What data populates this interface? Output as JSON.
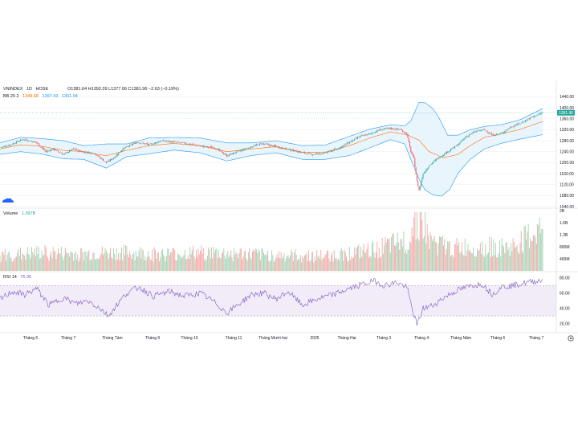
{
  "header": {
    "symbol": "VNINDEX",
    "interval": "1D",
    "exchange": "HOSE",
    "ohlc": "O1381.64 H1392.39 L1377.06 C1381.96 −2.63 (−0.19%)",
    "bb_label": "BB 20 2",
    "bb_basis": "1349.68",
    "bb_upper": "1397.43",
    "bb_lower": "1301.94"
  },
  "volume": {
    "label": "Volume",
    "value": "1.397B"
  },
  "rsi": {
    "label": "RSI 14",
    "value": "76.95"
  },
  "colors": {
    "up": "#26a69a",
    "down": "#ef5350",
    "bb_band": "#2196f3",
    "bb_fill": "#e3f2fd",
    "basis": "#ff6d00",
    "rsi_line": "#7e57c2",
    "rsi_fill": "#ede7f6",
    "grid": "#e6e9ef",
    "vol_up": "#a5d6b7",
    "vol_down": "#f7a9a8",
    "last_price_bg": "#26a69a"
  },
  "icons": {
    "logo": "tradingview-cloud-logo-icon",
    "settings": "settings-gear-icon"
  },
  "chart_data": {
    "type": "candlestick",
    "price_axis": {
      "ticks": [
        "1440.00",
        "1400.00",
        "1360.00",
        "1320.00",
        "1280.00",
        "1240.00",
        "1200.00",
        "1160.00",
        "1120.00",
        "1080.00",
        "1040.00"
      ],
      "last_price": "1381.96",
      "range": [
        1040,
        1450
      ]
    },
    "volume_axis": {
      "ticks": [
        "2B",
        "1.6B",
        "1.2B",
        "800M",
        "400M"
      ],
      "range": [
        0,
        2
      ]
    },
    "rsi_axis": {
      "ticks": [
        "80.00",
        "60.00",
        "40.00",
        "20.00"
      ],
      "range": [
        10,
        85
      ],
      "bands": [
        70,
        30
      ]
    },
    "x_labels": [
      "Tháng 6",
      "Tháng 7",
      "Tháng Tám",
      "Tháng 9",
      "Tháng 10",
      "Tháng 11",
      "Tháng Mười hai",
      "2025",
      "Tháng Hai",
      "Tháng 3",
      "Tháng 4",
      "Tháng Năm",
      "Tháng 6",
      "Tháng 7"
    ],
    "close_anchors": [
      [
        0,
        1255
      ],
      [
        10,
        1265
      ],
      [
        22,
        1285
      ],
      [
        35,
        1275
      ],
      [
        45,
        1240
      ],
      [
        52,
        1250
      ],
      [
        62,
        1230
      ],
      [
        72,
        1250
      ],
      [
        80,
        1240
      ],
      [
        92,
        1235
      ],
      [
        104,
        1200
      ],
      [
        112,
        1220
      ],
      [
        120,
        1250
      ],
      [
        134,
        1275
      ],
      [
        146,
        1265
      ],
      [
        158,
        1280
      ],
      [
        170,
        1275
      ],
      [
        182,
        1270
      ],
      [
        196,
        1260
      ],
      [
        210,
        1255
      ],
      [
        222,
        1225
      ],
      [
        232,
        1240
      ],
      [
        244,
        1255
      ],
      [
        256,
        1270
      ],
      [
        268,
        1260
      ],
      [
        280,
        1250
      ],
      [
        292,
        1240
      ],
      [
        304,
        1230
      ],
      [
        318,
        1235
      ],
      [
        330,
        1250
      ],
      [
        342,
        1275
      ],
      [
        352,
        1295
      ],
      [
        362,
        1305
      ],
      [
        372,
        1320
      ],
      [
        382,
        1325
      ],
      [
        392,
        1320
      ],
      [
        398,
        1305
      ],
      [
        402,
        1240
      ],
      [
        405,
        1215
      ],
      [
        408,
        1130
      ],
      [
        410,
        1100
      ],
      [
        414,
        1160
      ],
      [
        420,
        1190
      ],
      [
        428,
        1215
      ],
      [
        438,
        1240
      ],
      [
        448,
        1265
      ],
      [
        456,
        1295
      ],
      [
        466,
        1315
      ],
      [
        474,
        1320
      ],
      [
        482,
        1300
      ],
      [
        490,
        1305
      ],
      [
        500,
        1330
      ],
      [
        510,
        1345
      ],
      [
        520,
        1365
      ],
      [
        531,
        1382
      ]
    ],
    "basis_anchors": [
      [
        0,
        1250
      ],
      [
        20,
        1265
      ],
      [
        40,
        1260
      ],
      [
        62,
        1245
      ],
      [
        82,
        1240
      ],
      [
        104,
        1225
      ],
      [
        124,
        1245
      ],
      [
        146,
        1262
      ],
      [
        170,
        1270
      ],
      [
        196,
        1262
      ],
      [
        222,
        1240
      ],
      [
        246,
        1250
      ],
      [
        270,
        1258
      ],
      [
        296,
        1238
      ],
      [
        318,
        1238
      ],
      [
        342,
        1262
      ],
      [
        362,
        1290
      ],
      [
        382,
        1312
      ],
      [
        398,
        1302
      ],
      [
        410,
        1282
      ],
      [
        420,
        1240
      ],
      [
        434,
        1218
      ],
      [
        448,
        1230
      ],
      [
        460,
        1262
      ],
      [
        474,
        1292
      ],
      [
        490,
        1305
      ],
      [
        508,
        1320
      ],
      [
        531,
        1350
      ]
    ],
    "upper_anchors": [
      [
        0,
        1272
      ],
      [
        20,
        1292
      ],
      [
        40,
        1288
      ],
      [
        62,
        1280
      ],
      [
        82,
        1262
      ],
      [
        104,
        1268
      ],
      [
        124,
        1268
      ],
      [
        146,
        1290
      ],
      [
        170,
        1292
      ],
      [
        196,
        1290
      ],
      [
        222,
        1272
      ],
      [
        246,
        1272
      ],
      [
        270,
        1280
      ],
      [
        296,
        1262
      ],
      [
        318,
        1264
      ],
      [
        342,
        1296
      ],
      [
        362,
        1322
      ],
      [
        382,
        1338
      ],
      [
        396,
        1334
      ],
      [
        402,
        1352
      ],
      [
        410,
        1420
      ],
      [
        416,
        1418
      ],
      [
        424,
        1396
      ],
      [
        430,
        1360
      ],
      [
        438,
        1300
      ],
      [
        448,
        1300
      ],
      [
        460,
        1320
      ],
      [
        474,
        1332
      ],
      [
        490,
        1338
      ],
      [
        508,
        1355
      ],
      [
        531,
        1397
      ]
    ],
    "lower_anchors": [
      [
        0,
        1230
      ],
      [
        20,
        1240
      ],
      [
        40,
        1232
      ],
      [
        62,
        1214
      ],
      [
        82,
        1212
      ],
      [
        104,
        1180
      ],
      [
        124,
        1222
      ],
      [
        146,
        1232
      ],
      [
        170,
        1246
      ],
      [
        196,
        1236
      ],
      [
        222,
        1206
      ],
      [
        246,
        1226
      ],
      [
        270,
        1236
      ],
      [
        296,
        1212
      ],
      [
        318,
        1212
      ],
      [
        342,
        1226
      ],
      [
        362,
        1254
      ],
      [
        382,
        1284
      ],
      [
        396,
        1268
      ],
      [
        402,
        1212
      ],
      [
        410,
        1140
      ],
      [
        416,
        1100
      ],
      [
        424,
        1082
      ],
      [
        432,
        1078
      ],
      [
        440,
        1102
      ],
      [
        448,
        1160
      ],
      [
        460,
        1212
      ],
      [
        474,
        1250
      ],
      [
        490,
        1270
      ],
      [
        508,
        1285
      ],
      [
        531,
        1302
      ]
    ],
    "rsi_anchors": [
      [
        0,
        52
      ],
      [
        12,
        62
      ],
      [
        24,
        58
      ],
      [
        36,
        66
      ],
      [
        48,
        44
      ],
      [
        62,
        54
      ],
      [
        74,
        46
      ],
      [
        86,
        50
      ],
      [
        98,
        40
      ],
      [
        106,
        30
      ],
      [
        114,
        44
      ],
      [
        124,
        60
      ],
      [
        136,
        68
      ],
      [
        150,
        56
      ],
      [
        166,
        62
      ],
      [
        180,
        56
      ],
      [
        196,
        60
      ],
      [
        210,
        48
      ],
      [
        222,
        34
      ],
      [
        234,
        46
      ],
      [
        246,
        58
      ],
      [
        258,
        60
      ],
      [
        270,
        52
      ],
      [
        282,
        62
      ],
      [
        296,
        44
      ],
      [
        310,
        52
      ],
      [
        326,
        58
      ],
      [
        342,
        66
      ],
      [
        356,
        72
      ],
      [
        366,
        76
      ],
      [
        376,
        70
      ],
      [
        388,
        74
      ],
      [
        398,
        68
      ],
      [
        404,
        36
      ],
      [
        408,
        18
      ],
      [
        414,
        40
      ],
      [
        424,
        44
      ],
      [
        434,
        54
      ],
      [
        448,
        64
      ],
      [
        462,
        70
      ],
      [
        472,
        72
      ],
      [
        482,
        58
      ],
      [
        490,
        68
      ],
      [
        502,
        70
      ],
      [
        516,
        74
      ],
      [
        531,
        77
      ]
    ],
    "volume_anchors": [
      [
        0,
        0.5
      ],
      [
        40,
        0.6
      ],
      [
        80,
        0.55
      ],
      [
        120,
        0.6
      ],
      [
        160,
        0.55
      ],
      [
        200,
        0.6
      ],
      [
        240,
        0.55
      ],
      [
        280,
        0.5
      ],
      [
        320,
        0.5
      ],
      [
        360,
        0.65
      ],
      [
        400,
        1.0
      ],
      [
        408,
        1.9
      ],
      [
        414,
        1.6
      ],
      [
        420,
        1.0
      ],
      [
        440,
        0.75
      ],
      [
        470,
        0.8
      ],
      [
        500,
        0.75
      ],
      [
        531,
        1.397
      ]
    ]
  }
}
